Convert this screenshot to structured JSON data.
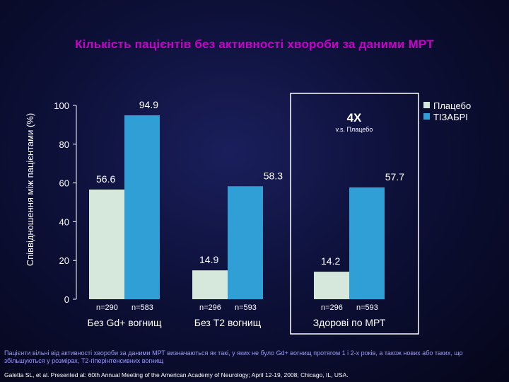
{
  "slide": {
    "title": "Кількість пацієнтів без активності хвороби за даними МРТ",
    "footnote": "Пацієнти вільні від активності хвороби за даними МРТ визначаються як такі, у яких не було Gd+ вогнищ протягом 1 і 2-х років,  а також нових або  таких, що збільшуються у розмірах, T2-гіперінтенсивних вогнищ",
    "citation": "Galetta SL, et al. Presented at: 60th Annual Meeting of the American Academy of Neurology; April 12-19, 2008; Chicago, IL, USA."
  },
  "colors": {
    "placebo": "#d6e8dc",
    "tysabri": "#2f9fd6",
    "text": "#ffffff",
    "title": "#cc00cc",
    "footnote": "#9999ff",
    "highlight_box": "#ffffff"
  },
  "chart_data": {
    "type": "bar",
    "categories": [
      "Без Gd+ вогнищ",
      "Без Т2 вогнищ",
      "Здорові по МРТ"
    ],
    "series": [
      {
        "name": "Плацебо",
        "values": [
          56.6,
          14.9,
          14.2
        ],
        "n": [
          "n=290",
          "n=296",
          "n=296"
        ]
      },
      {
        "name": "ТІЗАБРІ",
        "values": [
          94.9,
          58.3,
          57.7
        ],
        "n": [
          "n=583",
          "n=593",
          "n=593"
        ]
      }
    ],
    "ylabel": "Співвідношення між пацієнтами (%)",
    "ylim": [
      0,
      100
    ],
    "yticks": [
      0,
      20,
      40,
      60,
      80,
      100
    ],
    "legend_position": "top-right",
    "highlight": {
      "category": "Здорові по МРТ",
      "label": "4X",
      "sublabel": "v.s. Плацебо"
    }
  }
}
